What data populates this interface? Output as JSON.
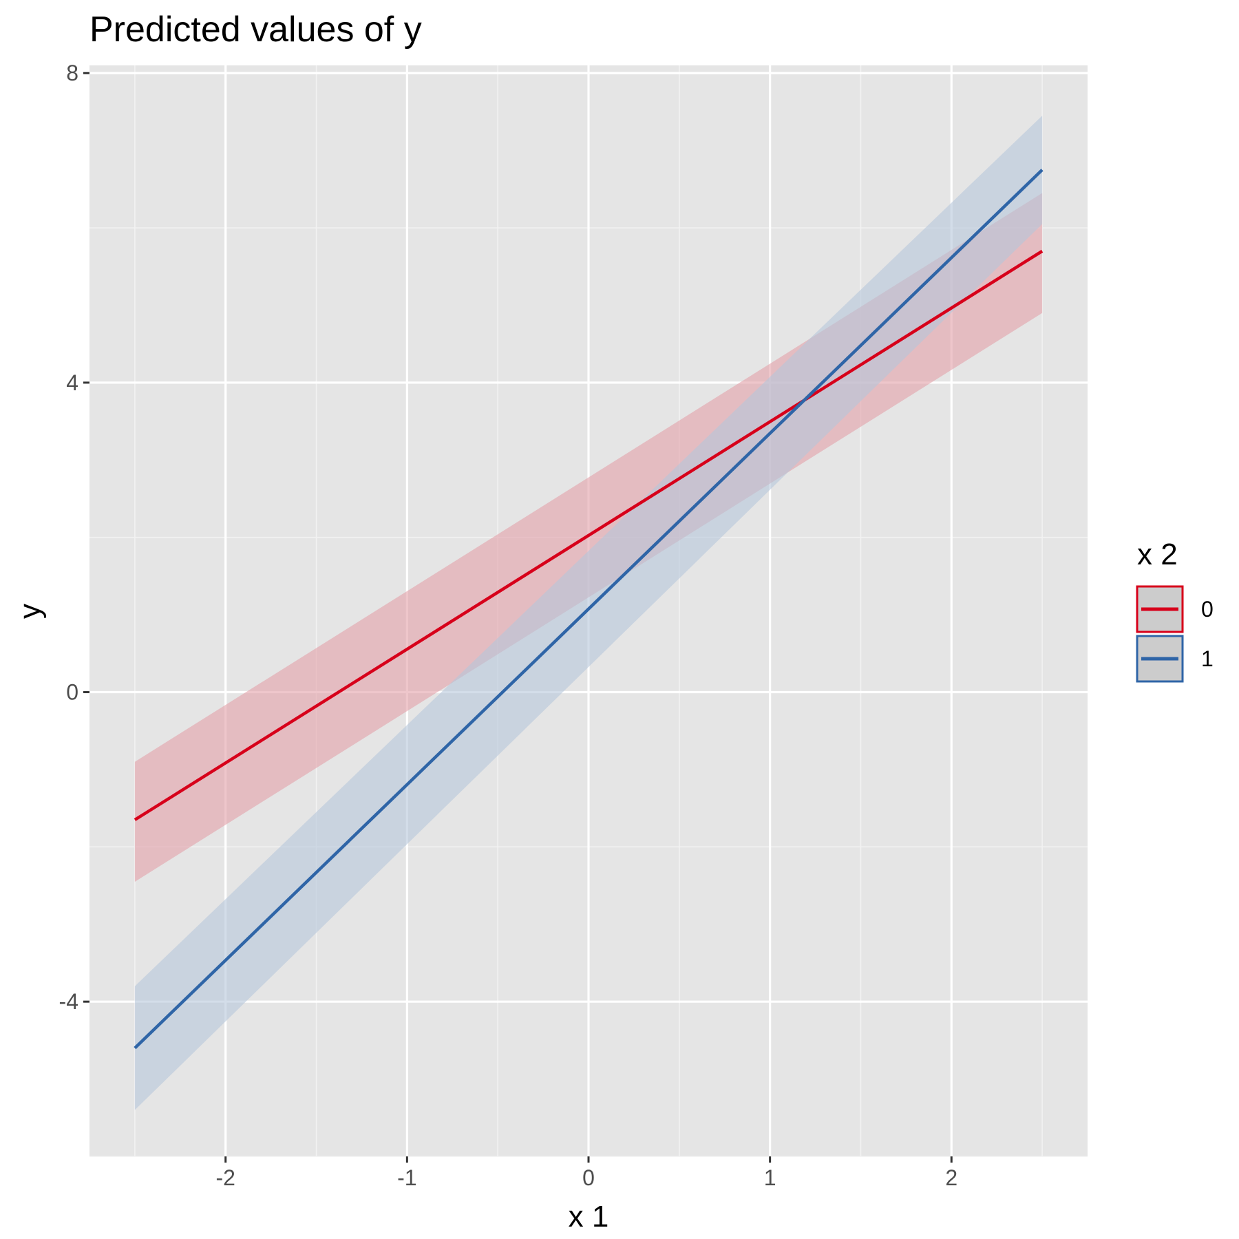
{
  "chart_data": {
    "type": "line",
    "title": "Predicted values of y",
    "xlabel": "x 1",
    "ylabel": "y",
    "xlim": [
      -2.75,
      2.75
    ],
    "ylim": [
      -6.0,
      8.1
    ],
    "x_ticks": [
      -2,
      -1,
      0,
      1,
      2
    ],
    "x_tick_labels": [
      "-2",
      "-1",
      "0",
      "1",
      "2"
    ],
    "x_minor_ticks": [
      -2.5,
      -1.5,
      -0.5,
      0.5,
      1.5,
      2.5
    ],
    "y_ticks": [
      -4,
      0,
      4,
      8
    ],
    "y_tick_labels": [
      "-4",
      "0",
      "4",
      "8"
    ],
    "y_minor_ticks": [
      -6,
      -2,
      2,
      6
    ],
    "grid": true,
    "legend": {
      "title": "x 2",
      "position": "right"
    },
    "series": [
      {
        "name": "0",
        "color": "#d7001a",
        "ribbon_color": "#e3a0a9",
        "x": [
          -2.5,
          2.5
        ],
        "y": [
          -1.65,
          5.7
        ],
        "lower": [
          -2.45,
          4.9
        ],
        "upper": [
          -0.9,
          6.45
        ]
      },
      {
        "name": "1",
        "color": "#2f65a7",
        "ribbon_color": "#b5c6da",
        "x": [
          -2.5,
          2.5
        ],
        "y": [
          -4.6,
          6.75
        ],
        "lower": [
          -5.4,
          6.05
        ],
        "upper": [
          -3.8,
          7.45
        ]
      }
    ]
  }
}
